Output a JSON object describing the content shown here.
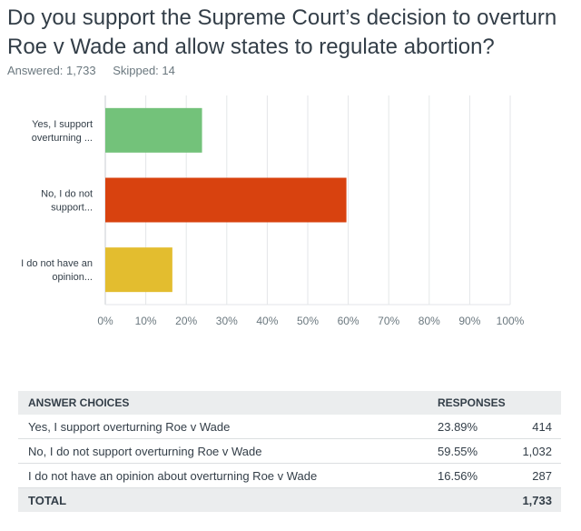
{
  "question": {
    "title": "Do you support the Supreme Court’s decision to overturn Roe v Wade and allow states to regulate abortion?",
    "answered": "Answered: 1,733",
    "skipped": "Skipped: 14"
  },
  "chart_data": {
    "type": "bar",
    "orientation": "horizontal",
    "categories": [
      "Yes, I support overturning ...",
      "No, I do not support...",
      "I do not have an opinion..."
    ],
    "values": [
      23.89,
      59.55,
      16.56
    ],
    "colors": [
      "#73c27a",
      "#d8420f",
      "#e3bd2f"
    ],
    "xlim": [
      0,
      100
    ],
    "xticks": [
      "0%",
      "10%",
      "20%",
      "30%",
      "40%",
      "50%",
      "60%",
      "70%",
      "80%",
      "90%",
      "100%"
    ],
    "grid": true
  },
  "table": {
    "headers": [
      "ANSWER CHOICES",
      "RESPONSES",
      ""
    ],
    "rows": [
      {
        "choice": "Yes, I support overturning Roe v Wade",
        "percent": "23.89%",
        "count": "414"
      },
      {
        "choice": "No, I do not support overturning Roe v Wade",
        "percent": "59.55%",
        "count": "1,032"
      },
      {
        "choice": "I do not have an opinion about overturning Roe v Wade",
        "percent": "16.56%",
        "count": "287"
      }
    ],
    "total_label": "TOTAL",
    "total_count": "1,733"
  }
}
